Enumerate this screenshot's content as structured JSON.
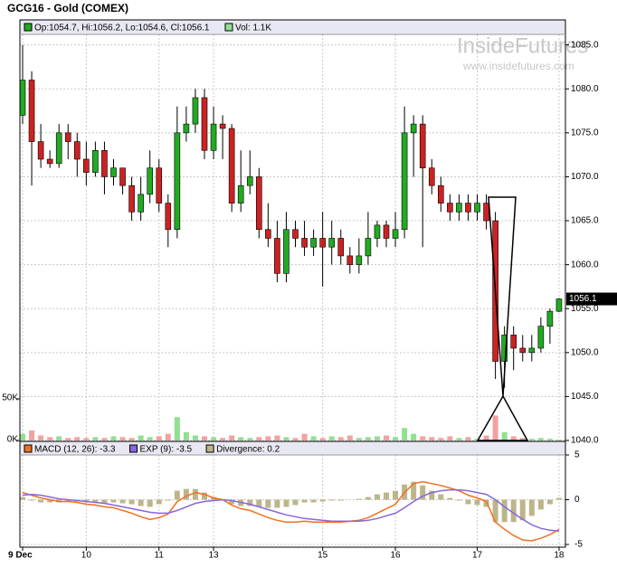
{
  "watermark": {
    "brand": "InsideFutures",
    "url": "www.insidefutures.com"
  },
  "chart_data": [
    {
      "type": "candlestick",
      "title": "GCG16 - Gold (COMEX)",
      "legend": {
        "ohlc": "Op:1054.7, Hi:1056.2, Lo:1054.6, Cl:1056.1",
        "volume": "Vol: 1.1K"
      },
      "up_color": "#22aa22",
      "down_color": "#cc2222",
      "volume_up_color": "#8fe08f",
      "volume_down_color": "#f5a0a0",
      "categories": [
        "9 Dec",
        null,
        null,
        null,
        null,
        null,
        null,
        "10",
        null,
        null,
        null,
        null,
        null,
        null,
        null,
        "11",
        null,
        null,
        null,
        null,
        null,
        "13",
        null,
        null,
        null,
        null,
        null,
        null,
        null,
        null,
        null,
        null,
        null,
        "15",
        null,
        null,
        null,
        null,
        null,
        null,
        null,
        "16",
        null,
        null,
        null,
        null,
        null,
        null,
        null,
        null,
        "17",
        null,
        null,
        null,
        null,
        null,
        null,
        null,
        null,
        "18"
      ],
      "open": [
        1077,
        1081,
        1074,
        1072,
        1071.5,
        1075,
        1074,
        1072,
        1070.5,
        1073,
        1070,
        1071,
        1069,
        1066,
        1068,
        1071,
        1067,
        1064,
        1075,
        1076,
        1079,
        1073,
        1076,
        1075.5,
        1067,
        1069,
        1070,
        1064,
        1063,
        1059,
        1064,
        1063,
        1062,
        1063,
        1062,
        1063,
        1061,
        1060,
        1061,
        1063,
        1064.5,
        1063,
        1064,
        1075,
        1076,
        1071,
        1069,
        1067,
        1066,
        1067,
        1066,
        1067,
        1065,
        1049,
        1052,
        1050.5,
        1050,
        1050.5,
        1053,
        1054.7
      ],
      "high": [
        1085,
        1082,
        1076,
        1073,
        1076,
        1076,
        1075,
        1074,
        1074,
        1074,
        1072,
        1071,
        1070,
        1070,
        1073,
        1072,
        1068,
        1078,
        1078,
        1080,
        1080,
        1078,
        1077,
        1076,
        1073,
        1073,
        1071,
        1067,
        1065,
        1066,
        1065,
        1065,
        1064,
        1066,
        1065,
        1064,
        1062,
        1063,
        1066,
        1065,
        1065,
        1066,
        1078,
        1077,
        1077,
        1072,
        1070,
        1068,
        1068,
        1068,
        1068,
        1068,
        1066,
        1053,
        1053,
        1052,
        1052,
        1054,
        1055,
        1056.2
      ],
      "low": [
        1076,
        1069,
        1071,
        1071,
        1071,
        1072,
        1070,
        1069,
        1070,
        1068,
        1069,
        1068,
        1065,
        1065,
        1067,
        1066,
        1062,
        1063,
        1074,
        1075,
        1072,
        1072,
        1072,
        1066,
        1066,
        1068,
        1063,
        1062,
        1058,
        1058,
        1062,
        1061,
        1061,
        1057.5,
        1060,
        1060,
        1059,
        1059,
        1060,
        1062,
        1062,
        1062,
        1063,
        1070,
        1062,
        1068,
        1066,
        1065,
        1065,
        1065,
        1065,
        1064,
        1047,
        1046,
        1048,
        1049,
        1049,
        1050,
        1051,
        1054.6
      ],
      "close": [
        1081,
        1074,
        1072,
        1071.5,
        1075,
        1074,
        1072,
        1070.5,
        1073,
        1070,
        1071,
        1069,
        1066,
        1068,
        1071,
        1067,
        1064,
        1075,
        1076,
        1079,
        1073,
        1076,
        1075.5,
        1067,
        1069,
        1070,
        1064,
        1063,
        1059,
        1064,
        1063,
        1062,
        1063,
        1062,
        1063,
        1061,
        1060,
        1061,
        1063,
        1064.5,
        1063,
        1064,
        1075,
        1076,
        1071,
        1069,
        1067,
        1066,
        1067,
        1066,
        1067,
        1065,
        1049,
        1052,
        1050.5,
        1050,
        1050.5,
        1053,
        1054.7,
        1056.1
      ],
      "volume": [
        8,
        12,
        6,
        4,
        5,
        3,
        4,
        3,
        4,
        3,
        5,
        4,
        3,
        6,
        4,
        5,
        8,
        28,
        10,
        6,
        5,
        4,
        3,
        6,
        4,
        3,
        4,
        5,
        6,
        4,
        3,
        8,
        5,
        3,
        5,
        4,
        6,
        3,
        4,
        5,
        6,
        4,
        15,
        8,
        5,
        4,
        3,
        5,
        3,
        4,
        2,
        6,
        30,
        10,
        5,
        3,
        2,
        3,
        2,
        1.1
      ],
      "ylim": [
        1040,
        1086.2
      ],
      "yticks": [
        {
          "value": 1040,
          "label": "1040.0"
        },
        {
          "value": 1045,
          "label": "1045.0"
        },
        {
          "value": 1050,
          "label": "1050.0"
        },
        {
          "value": 1055,
          "label": "1055.0"
        },
        {
          "value": 1060,
          "label": "1060.0"
        },
        {
          "value": 1065,
          "label": "1065.0"
        },
        {
          "value": 1070,
          "label": "1070.0"
        },
        {
          "value": 1075,
          "label": "1075.0"
        },
        {
          "value": 1080,
          "label": "1080.0"
        },
        {
          "value": 1085,
          "label": "1085.0"
        }
      ],
      "volume_lim": [
        0,
        488
      ],
      "volume_ticks": [
        {
          "value": 0,
          "label": "0K"
        },
        {
          "value": 50,
          "label": "50K"
        }
      ],
      "grid": true
    },
    {
      "type": "macd",
      "series": [
        {
          "name": "MACD (12, 26): -3.3",
          "color": "#f07020",
          "kind": "line",
          "values": [
            0.8,
            0.5,
            0.2,
            0,
            -0.2,
            -0.2,
            -0.3,
            -0.5,
            -0.6,
            -0.8,
            -0.9,
            -1.2,
            -1.5,
            -1.9,
            -2.2,
            -2.0,
            -1.6,
            -0.2,
            0.4,
            0.8,
            0.6,
            0.2,
            0,
            -0.6,
            -1.0,
            -1.2,
            -1.6,
            -2.0,
            -2.3,
            -2.5,
            -2.5,
            -2.4,
            -2.5,
            -2.5,
            -2.5,
            -2.5,
            -2.4,
            -2.3,
            -2.0,
            -1.5,
            -1.0,
            -0.5,
            0.8,
            1.8,
            2.0,
            1.8,
            1.6,
            1.3,
            1.0,
            0.5,
            0.2,
            -0.2,
            -2.5,
            -3.3,
            -4.0,
            -4.5,
            -4.6,
            -4.3,
            -3.9,
            -3.3
          ]
        },
        {
          "name": "EXP (9): -3.5",
          "color": "#8866dd",
          "kind": "line",
          "values": [
            0.5,
            0.6,
            0.5,
            0.3,
            0.1,
            0,
            -0.1,
            -0.2,
            -0.3,
            -0.4,
            -0.6,
            -0.8,
            -1.0,
            -1.2,
            -1.4,
            -1.5,
            -1.5,
            -1.2,
            -0.8,
            -0.4,
            -0.2,
            -0.1,
            0,
            -0.1,
            -0.3,
            -0.5,
            -0.8,
            -1.1,
            -1.4,
            -1.7,
            -1.9,
            -2.1,
            -2.2,
            -2.3,
            -2.4,
            -2.4,
            -2.4,
            -2.4,
            -2.3,
            -2.1,
            -1.8,
            -1.5,
            -0.9,
            -0.2,
            0.4,
            0.8,
            1.0,
            1.1,
            1.1,
            1.0,
            0.8,
            0.6,
            0,
            -0.8,
            -1.5,
            -2.2,
            -2.8,
            -3.2,
            -3.4,
            -3.5
          ]
        },
        {
          "name": "Divergence: 0.2",
          "color": "#bdb58a",
          "kind": "bar",
          "values": [
            0.3,
            -0.1,
            -0.3,
            -0.3,
            -0.3,
            -0.2,
            -0.2,
            -0.3,
            -0.3,
            -0.4,
            -0.3,
            -0.4,
            -0.5,
            -0.7,
            -0.8,
            -0.5,
            -0.1,
            1.0,
            1.2,
            1.2,
            0.8,
            0.3,
            0,
            -0.5,
            -0.7,
            -0.7,
            -0.8,
            -0.9,
            -0.9,
            -0.8,
            -0.6,
            -0.3,
            -0.3,
            -0.2,
            -0.1,
            -0.1,
            0,
            0.1,
            0.3,
            0.6,
            0.8,
            1.0,
            1.7,
            2.0,
            1.6,
            1.0,
            0.6,
            0.2,
            -0.1,
            -0.5,
            -0.6,
            -0.8,
            -2.5,
            -2.5,
            -2.5,
            -2.3,
            -1.8,
            -1.1,
            -0.5,
            0.2
          ]
        }
      ],
      "ylim": [
        -5,
        5
      ],
      "yticks": [
        5,
        0,
        -5
      ],
      "grid": true
    }
  ]
}
